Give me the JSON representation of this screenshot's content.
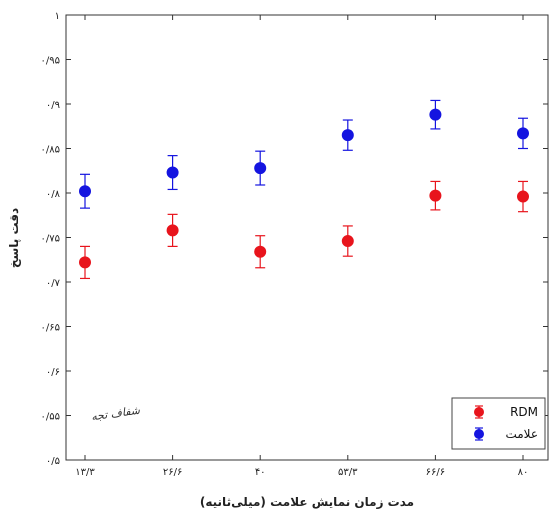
{
  "chart_data": {
    "type": "scatter",
    "xlabel": "مدت زمان نمایش علامت (میلی‌ثانیه)",
    "ylabel": "دقت پاسخ",
    "categories": [
      "۱۳/۳",
      "۲۶/۶",
      "۴۰",
      "۵۳/۳",
      "۶۶/۶",
      "۸۰"
    ],
    "ylim": [
      0.5,
      1.0
    ],
    "yticks": [
      0.5,
      0.55,
      0.6,
      0.65,
      0.7,
      0.75,
      0.8,
      0.85,
      0.9,
      0.95,
      1.0
    ],
    "ytick_labels": [
      "۰/۵",
      "۰/۵۵",
      "۰/۶",
      "۰/۶۵",
      "۰/۷",
      "۰/۷۵",
      "۰/۸",
      "۰/۸۵",
      "۰/۹",
      "۰/۹۵",
      "۱"
    ],
    "grid": false,
    "legend_position": "bottom-right",
    "series": [
      {
        "name": "RDM",
        "color": "#e8141c",
        "values": [
          0.722,
          0.758,
          0.734,
          0.746,
          0.797,
          0.796
        ],
        "errors": [
          0.018,
          0.018,
          0.018,
          0.017,
          0.016,
          0.017
        ]
      },
      {
        "name": "علامت",
        "color": "#1414e0",
        "values": [
          0.802,
          0.823,
          0.828,
          0.865,
          0.888,
          0.867
        ],
        "errors": [
          0.019,
          0.019,
          0.019,
          0.017,
          0.016,
          0.017
        ]
      }
    ],
    "watermark": "شفاف تجه"
  }
}
